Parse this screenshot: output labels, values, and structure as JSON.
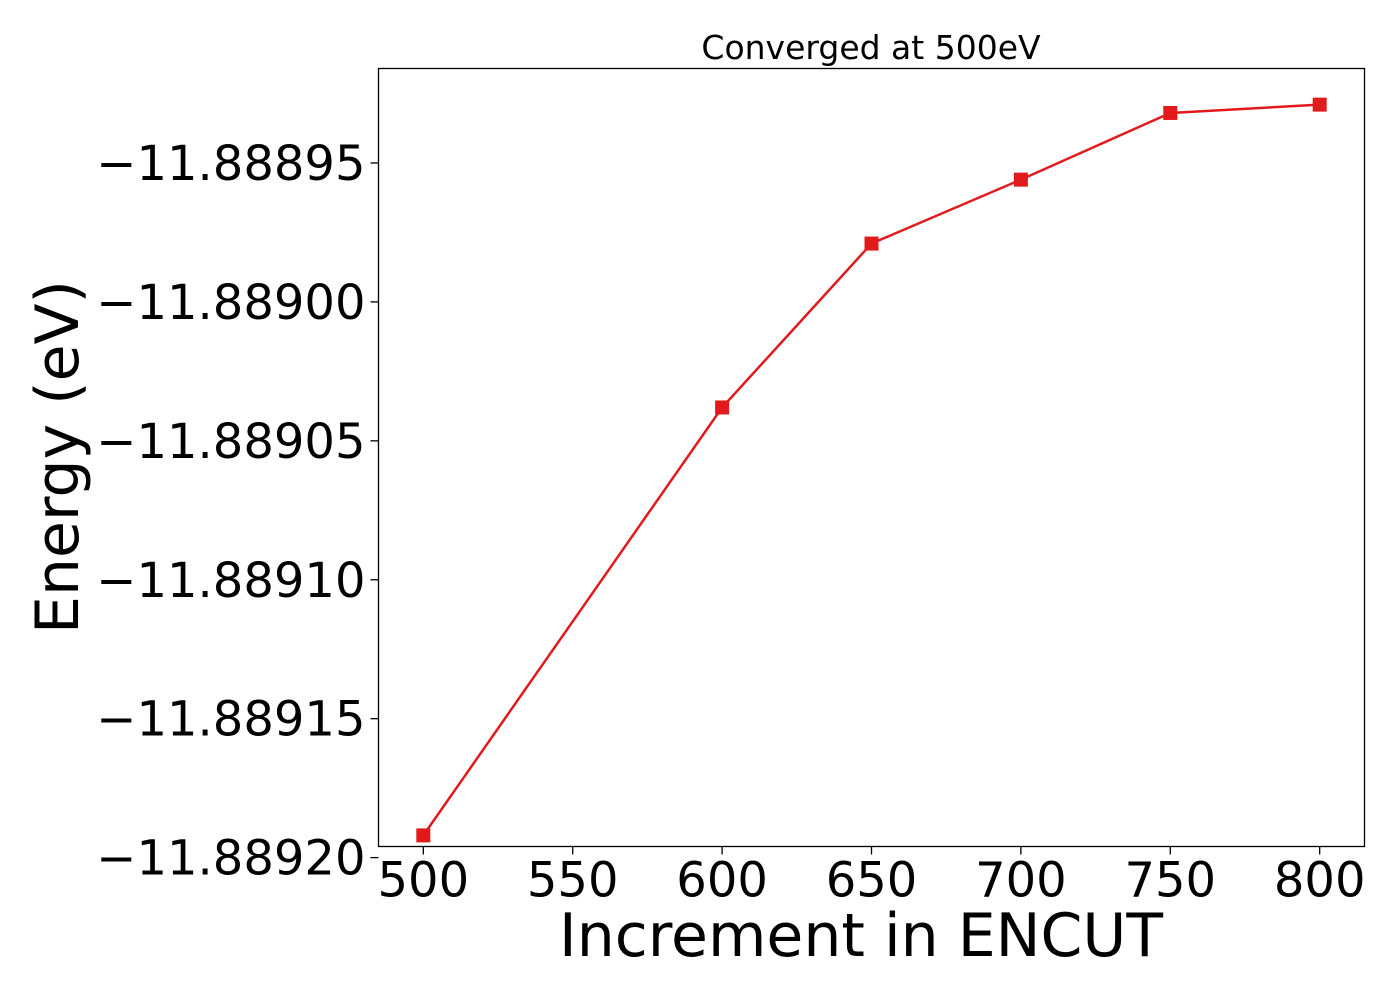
{
  "chart_data": {
    "type": "line",
    "title": "Converged at 500eV",
    "xlabel": "Increment in ENCUT",
    "ylabel": "Energy (eV)",
    "x": [
      500,
      600,
      650,
      700,
      750,
      800
    ],
    "series": [
      {
        "values": [
          -11.889192,
          -11.889038,
          -11.888979,
          -11.888956,
          -11.888932,
          -11.888929
        ],
        "color": "#e31a1c",
        "marker": "square"
      }
    ],
    "x_ticks": [
      500,
      550,
      600,
      650,
      700,
      750,
      800
    ],
    "x_tick_labels": [
      "500",
      "550",
      "600",
      "650",
      "700",
      "750",
      "800"
    ],
    "y_ticks": [
      -11.8892,
      -11.88915,
      -11.8891,
      -11.88905,
      -11.889,
      -11.88895
    ],
    "y_tick_labels": [
      "−11.88920",
      "−11.88915",
      "−11.88910",
      "−11.88905",
      "−11.88900",
      "−11.88895"
    ],
    "xlim": [
      485,
      815
    ],
    "ylim": [
      -11.889196,
      -11.888916
    ],
    "grid": false,
    "legend": "none"
  }
}
